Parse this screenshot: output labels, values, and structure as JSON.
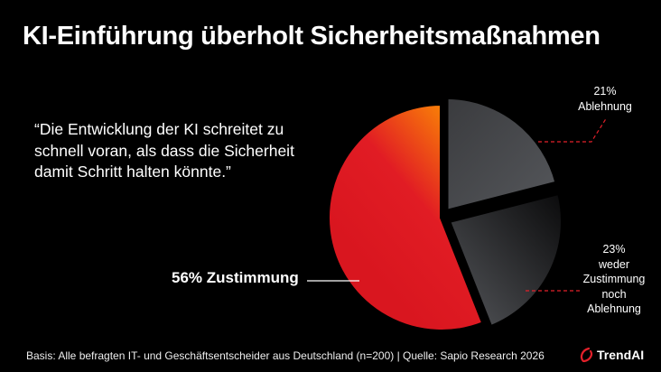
{
  "title": "KI-Einführung überholt Sicherheitsmaßnahmen",
  "quote": "“Die Entwicklung der KI schreitet zu schnell voran, als dass die Sicherheit damit Schritt halten könnte.”",
  "footer": "Basis: Alle befragten IT- und Geschäftsentscheider aus Deutschland (n=200) | Quelle: Sapio Research 2026",
  "logo": {
    "text": "TrendAI",
    "icon": "trendai-swirl-icon",
    "color": "#e3202a"
  },
  "chart_data": {
    "type": "pie",
    "start": "top",
    "slices": [
      {
        "label": "Zustimmung",
        "value": 56,
        "display": "56% Zustimmung",
        "colors": [
          "#ff9a00",
          "#e11c24",
          "#d9161f"
        ]
      },
      {
        "label": "Ablehnung",
        "value": 21,
        "display_pct": "21%",
        "display_label": "Ablehnung",
        "colors": [
          "#3a3b3e",
          "#55575b"
        ]
      },
      {
        "label": "weder Zustimmung noch Ablehnung",
        "value": 23,
        "display_pct": "23%",
        "display_lines": [
          "weder",
          "Zustimmung",
          "noch",
          "Ablehnung"
        ],
        "colors": [
          "#0a0a0b",
          "#55575b"
        ]
      }
    ],
    "leader_color": "#e3202a"
  }
}
